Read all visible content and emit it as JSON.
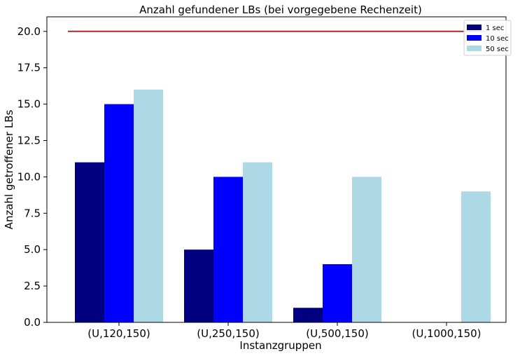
{
  "chart_data": {
    "type": "bar",
    "title": "Anzahl gefundener LBs (bei vorgegebene Rechenzeit)",
    "xlabel": "Instanzgruppen",
    "ylabel": "Anzahl getroffener LBs",
    "categories": [
      "(U,120,150)",
      "(U,250,150)",
      "(U,500,150)",
      "(U,1000,150)"
    ],
    "series": [
      {
        "name": "1 sec",
        "color": "#000080",
        "values": [
          11,
          5,
          1,
          0
        ]
      },
      {
        "name": "10 sec",
        "color": "#0000ff",
        "values": [
          15,
          10,
          4,
          0
        ]
      },
      {
        "name": "50 sec",
        "color": "#add8e6",
        "values": [
          16,
          11,
          10,
          9
        ]
      }
    ],
    "reference_line": {
      "value": 20,
      "color": "#a52a2a"
    },
    "ylim": [
      0,
      21
    ],
    "yticks": [
      "0.0",
      "2.5",
      "5.0",
      "7.5",
      "10.0",
      "12.5",
      "15.0",
      "17.5",
      "20.0"
    ],
    "grid": false,
    "legend_position": "top-right"
  }
}
